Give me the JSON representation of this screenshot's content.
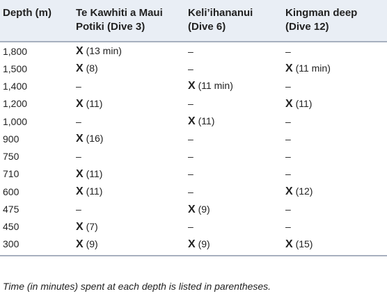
{
  "table": {
    "headers": [
      "Depth (m)",
      "Te Kawhiti a Maui Potiki (Dive 3)",
      "Keli’ihananui (Dive 6)",
      "Kingman deep (Dive 12)"
    ],
    "rows": [
      {
        "depth": "1,800",
        "cells": [
          {
            "mark": "X",
            "time": "(13 min)"
          },
          {
            "dash": "–"
          },
          {
            "dash": "–"
          }
        ]
      },
      {
        "depth": "1,500",
        "cells": [
          {
            "mark": "X",
            "time": "(8)"
          },
          {
            "dash": "–"
          },
          {
            "mark": "X",
            "time": "(11 min)"
          }
        ]
      },
      {
        "depth": "1,400",
        "cells": [
          {
            "dash": "–"
          },
          {
            "mark": "X",
            "time": "(11 min)"
          },
          {
            "dash": "–"
          }
        ]
      },
      {
        "depth": "1,200",
        "cells": [
          {
            "mark": "X",
            "time": "(11)"
          },
          {
            "dash": "–"
          },
          {
            "mark": "X",
            "time": "(11)"
          }
        ]
      },
      {
        "depth": "1,000",
        "cells": [
          {
            "dash": "–"
          },
          {
            "mark": "X",
            "time": "(11)"
          },
          {
            "dash": "–"
          }
        ]
      },
      {
        "depth": "900",
        "cells": [
          {
            "mark": "X",
            "time": "(16)"
          },
          {
            "dash": "–"
          },
          {
            "dash": "–"
          }
        ]
      },
      {
        "depth": "750",
        "cells": [
          {
            "dash": "–"
          },
          {
            "dash": "–"
          },
          {
            "dash": "–"
          }
        ]
      },
      {
        "depth": "710",
        "cells": [
          {
            "mark": "X",
            "time": "(11)"
          },
          {
            "dash": "–"
          },
          {
            "dash": "–"
          }
        ]
      },
      {
        "depth": "600",
        "cells": [
          {
            "mark": "X",
            "time": "(11)"
          },
          {
            "dash": "–"
          },
          {
            "mark": "X",
            "time": "(12)"
          }
        ]
      },
      {
        "depth": "475",
        "cells": [
          {
            "dash": "–"
          },
          {
            "mark": "X",
            "time": "(9)"
          },
          {
            "dash": "–"
          }
        ]
      },
      {
        "depth": "450",
        "cells": [
          {
            "mark": "X",
            "time": "(7)"
          },
          {
            "dash": "–"
          },
          {
            "dash": "–"
          }
        ]
      },
      {
        "depth": "300",
        "cells": [
          {
            "mark": "X",
            "time": "(9)"
          },
          {
            "mark": "X",
            "time": "(9)"
          },
          {
            "mark": "X",
            "time": "(15)"
          }
        ]
      }
    ]
  },
  "footnote": "Time (in minutes) spent at each depth is listed in parentheses."
}
